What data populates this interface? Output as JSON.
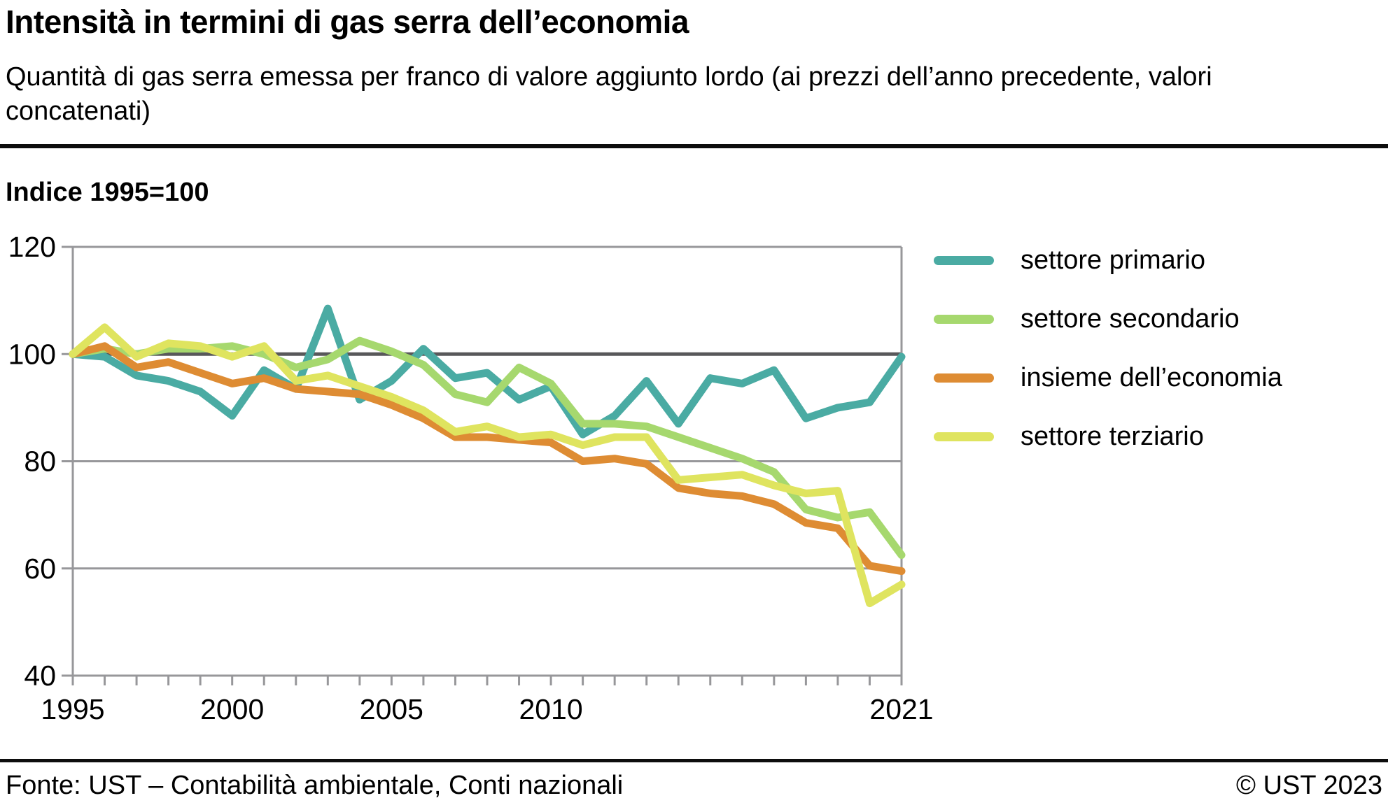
{
  "header": {
    "title": "Intensità in termini di gas serra dell’economia",
    "subtitle": "Quantità di gas serra emessa per franco di valore aggiunto lordo (ai prezzi dell’anno precedente, valori concatenati)"
  },
  "index_label": "Indice 1995=100",
  "chart_data": {
    "type": "line",
    "title": "Intensità in termini di gas serra dell’economia",
    "ylabel": "Indice 1995=100",
    "xlabel": "",
    "ylim": [
      40,
      120
    ],
    "y_ticks": [
      40,
      60,
      80,
      100,
      120
    ],
    "reference_line": 100,
    "grid": true,
    "legend_position": "right",
    "x": [
      1995,
      1996,
      1997,
      1998,
      1999,
      2000,
      2001,
      2002,
      2003,
      2004,
      2005,
      2006,
      2007,
      2008,
      2009,
      2010,
      2011,
      2012,
      2013,
      2014,
      2015,
      2016,
      2017,
      2018,
      2019,
      2020,
      2021
    ],
    "x_tick_labels": [
      "1995",
      "2000",
      "2005",
      "2010",
      "2021"
    ],
    "x_tick_years": [
      1995,
      2000,
      2005,
      2010,
      2021
    ],
    "series": [
      {
        "name": "settore primario",
        "color": "#4aaba3",
        "values": [
          100,
          99.5,
          96,
          95,
          93,
          88.5,
          97,
          93.5,
          108.5,
          91.5,
          95,
          101,
          95.5,
          96.5,
          91.5,
          94,
          85,
          88.5,
          95,
          87,
          95.5,
          94.5,
          97,
          88,
          90,
          91,
          99.5
        ]
      },
      {
        "name": "settore secondario",
        "color": "#a6d86e",
        "values": [
          100,
          101,
          100,
          101,
          101,
          101.5,
          100,
          97.5,
          99,
          102.5,
          100.5,
          98,
          92.5,
          91,
          97.5,
          94.5,
          87,
          87,
          86.5,
          84.5,
          82.5,
          80.5,
          78,
          71,
          69.5,
          70.5,
          62.5
        ]
      },
      {
        "name": "insieme dell’economia",
        "color": "#de8c33",
        "values": [
          100,
          101.5,
          97.5,
          98.5,
          96.5,
          94.5,
          95.5,
          93.5,
          93,
          92.5,
          90.5,
          88,
          84.5,
          84.5,
          84,
          83.5,
          80,
          80.5,
          79.5,
          75,
          74,
          73.5,
          72,
          68.5,
          67.5,
          60.5,
          59.5
        ]
      },
      {
        "name": "settore terziario",
        "color": "#dfe45f",
        "values": [
          100,
          105,
          99.5,
          102,
          101.5,
          99.5,
          101.5,
          95,
          96,
          94,
          92,
          89.5,
          85.5,
          86.5,
          84.5,
          85,
          83,
          84.5,
          84.5,
          76.5,
          77,
          77.5,
          75.5,
          74,
          74.5,
          53.5,
          57
        ]
      }
    ]
  },
  "colors": {
    "grid": "#97979a",
    "reference_line": "#58585a",
    "axis_text": "#000000",
    "rule": "#0d0d0d"
  },
  "footer": {
    "source": "Fonte: UST – Contabilità ambientale, Conti nazionali",
    "copyright": "© UST 2023"
  }
}
